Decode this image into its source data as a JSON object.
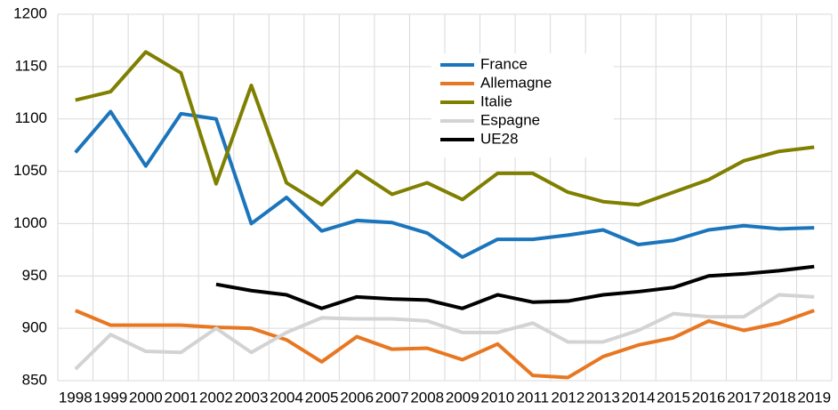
{
  "chart_data": {
    "type": "line",
    "categories": [
      "1998",
      "1999",
      "2000",
      "2001",
      "2002",
      "2003",
      "2004",
      "2005",
      "2006",
      "2007",
      "2008",
      "2009",
      "2010",
      "2011",
      "2012",
      "2013",
      "2014",
      "2015",
      "2016",
      "2017",
      "2018",
      "2019"
    ],
    "series": [
      {
        "name": "France",
        "color": "#1b75bc",
        "values": [
          1068,
          1107,
          1055,
          1105,
          1100,
          1000,
          1025,
          993,
          1003,
          1001,
          991,
          968,
          985,
          985,
          989,
          994,
          980,
          984,
          994,
          998,
          995,
          996
        ]
      },
      {
        "name": "Allemagne",
        "color": "#e87722",
        "values": [
          917,
          903,
          903,
          903,
          901,
          900,
          889,
          868,
          892,
          880,
          881,
          870,
          885,
          855,
          853,
          873,
          884,
          891,
          907,
          898,
          905,
          917
        ]
      },
      {
        "name": "Italie",
        "color": "#7f7f00",
        "values": [
          1118,
          1126,
          1164,
          1144,
          1038,
          1132,
          1039,
          1018,
          1050,
          1028,
          1039,
          1023,
          1048,
          1048,
          1030,
          1021,
          1018,
          1030,
          1042,
          1060,
          1069,
          1073
        ]
      },
      {
        "name": "Espagne",
        "color": "#d3d3d3",
        "values": [
          861,
          894,
          878,
          877,
          900,
          877,
          896,
          910,
          909,
          909,
          907,
          896,
          896,
          905,
          887,
          887,
          898,
          914,
          911,
          911,
          932,
          930
        ]
      },
      {
        "name": "UE28",
        "color": "#000000",
        "values": [
          null,
          null,
          null,
          null,
          942,
          936,
          932,
          919,
          930,
          928,
          927,
          919,
          932,
          925,
          926,
          932,
          935,
          939,
          950,
          952,
          955,
          959
        ]
      }
    ],
    "ylim": [
      850,
      1200
    ],
    "yticks": [
      850,
      900,
      950,
      1000,
      1050,
      1100,
      1150,
      1200
    ],
    "grid": true,
    "legend": "upper center"
  }
}
